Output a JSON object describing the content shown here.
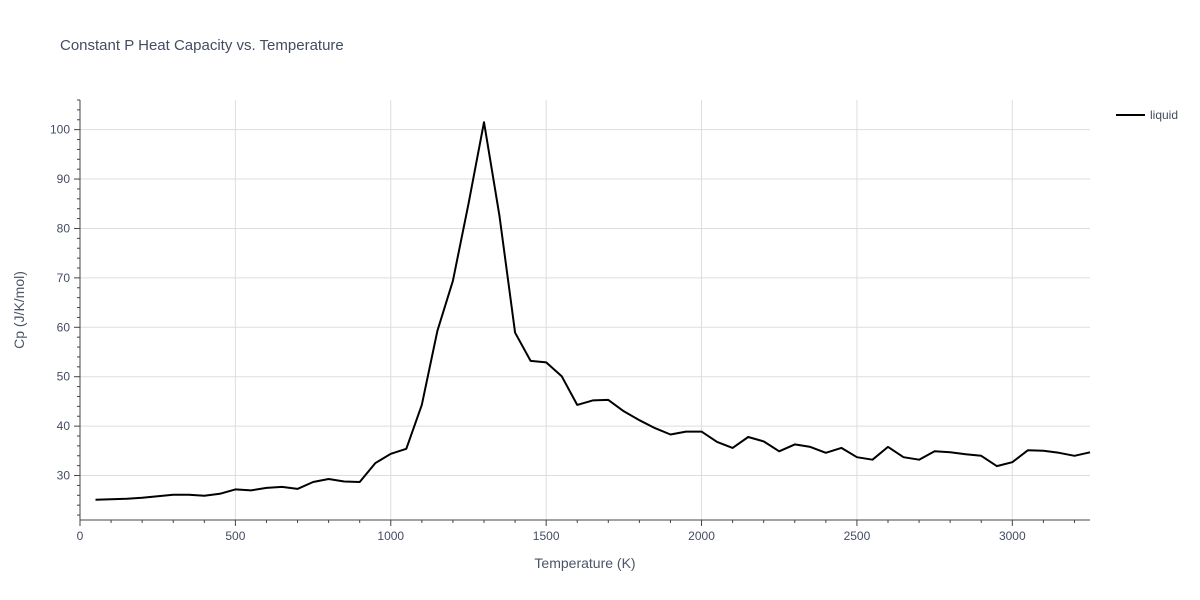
{
  "chart_data": {
    "type": "line",
    "title": "Constant P Heat Capacity vs. Temperature",
    "xlabel": "Temperature (K)",
    "ylabel": "Cp (J/K/mol)",
    "xlim": [
      0,
      3250
    ],
    "ylim": [
      21,
      106
    ],
    "x_ticks": [
      0,
      500,
      1000,
      1500,
      2000,
      2500,
      3000
    ],
    "y_ticks": [
      30,
      40,
      50,
      60,
      70,
      80,
      90,
      100
    ],
    "grid": true,
    "legend_position": "top-right",
    "series": [
      {
        "name": "liquid",
        "color": "#000000",
        "x": [
          50,
          100,
          150,
          200,
          250,
          300,
          350,
          400,
          450,
          500,
          550,
          600,
          650,
          700,
          750,
          800,
          850,
          900,
          950,
          1000,
          1050,
          1100,
          1150,
          1200,
          1250,
          1300,
          1350,
          1400,
          1450,
          1500,
          1550,
          1600,
          1650,
          1700,
          1750,
          1800,
          1850,
          1900,
          1950,
          2000,
          2050,
          2100,
          2150,
          2200,
          2250,
          2300,
          2350,
          2400,
          2450,
          2500,
          2550,
          2600,
          2650,
          2700,
          2750,
          2800,
          2850,
          2900,
          2950,
          3000,
          3050,
          3100,
          3150,
          3200,
          3250
        ],
        "y": [
          25.1,
          25.2,
          25.3,
          25.5,
          25.8,
          26.1,
          26.1,
          25.9,
          26.3,
          27.2,
          27.0,
          27.5,
          27.7,
          27.3,
          28.7,
          29.3,
          28.8,
          28.7,
          32.5,
          34.4,
          35.4,
          44.3,
          59.3,
          69.4,
          85.0,
          101.5,
          82.5,
          58.9,
          53.2,
          52.9,
          50.1,
          44.3,
          45.2,
          45.3,
          43.0,
          41.2,
          39.6,
          38.3,
          38.9,
          38.9,
          36.8,
          35.6,
          37.8,
          36.9,
          34.9,
          36.3,
          35.8,
          34.6,
          35.6,
          33.7,
          33.2,
          35.8,
          33.7,
          33.2,
          34.9,
          34.7,
          34.3,
          34.0,
          31.9,
          32.7,
          35.1,
          35.0,
          34.6,
          34.0,
          34.7
        ]
      }
    ]
  }
}
